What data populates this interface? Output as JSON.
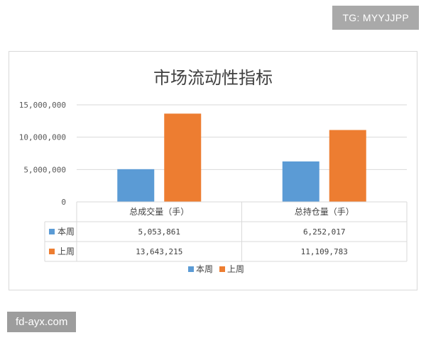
{
  "watermarks": {
    "top": "TG: MYYJJPP",
    "bottom": "fd-ayx.com"
  },
  "colors": {
    "this_week": "#5b9bd5",
    "last_week": "#ed7d31"
  },
  "chart_data": {
    "type": "bar",
    "title": "市场流动性指标",
    "categories": [
      "总成交量（手）",
      "总持仓量（手）"
    ],
    "series": [
      {
        "name": "本周",
        "values": [
          5053861,
          6252017
        ],
        "labels": [
          "5,053,861",
          "6,252,017"
        ]
      },
      {
        "name": "上周",
        "values": [
          13643215,
          11109783
        ],
        "labels": [
          "13,643,215",
          "11,109,783"
        ]
      }
    ],
    "ylim": [
      0,
      15000000
    ],
    "yticks": [
      0,
      5000000,
      10000000,
      15000000
    ],
    "ytick_labels": [
      "0",
      "5,000,000",
      "10,000,000",
      "15,000,000"
    ],
    "grid": true,
    "legend": "bottom",
    "data_table": true
  }
}
